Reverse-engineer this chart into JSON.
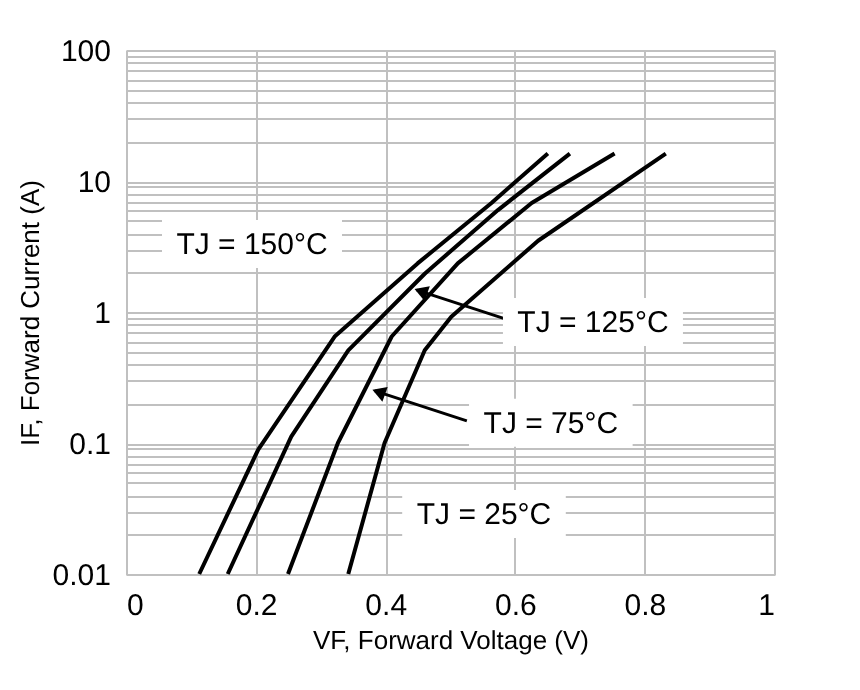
{
  "chart_data": {
    "type": "line",
    "xlabel": "VF, Forward Voltage (V)",
    "ylabel": "IF, Forward Current (A)",
    "xlim": [
      0,
      1
    ],
    "xticks": [
      0,
      0.2,
      0.4,
      0.6,
      0.8,
      1
    ],
    "ylim": [
      0.01,
      100
    ],
    "yticks": [
      0.01,
      0.1,
      1,
      10,
      100
    ],
    "log": "y",
    "grid": true,
    "line_style": "solid",
    "marker": "none",
    "series": [
      {
        "color": "#000000",
        "x": [
          0.113,
          0.204,
          0.322,
          0.45,
          0.564,
          0.651
        ],
        "values": [
          0.01,
          0.089,
          0.65,
          2.35,
          6.8,
          16.2
        ]
      },
      {
        "color": "#000000",
        "x": [
          0.157,
          0.255,
          0.343,
          0.461,
          0.574,
          0.685
        ],
        "values": [
          0.01,
          0.112,
          0.51,
          1.96,
          6.0,
          16.2
        ]
      },
      {
        "color": "#000000",
        "x": [
          0.25,
          0.327,
          0.41,
          0.512,
          0.626,
          0.754
        ],
        "values": [
          0.01,
          0.1,
          0.65,
          2.35,
          6.8,
          16.2
        ]
      },
      {
        "color": "#000000",
        "x": [
          0.343,
          0.399,
          0.461,
          0.502,
          0.636,
          0.833
        ],
        "values": [
          0.01,
          0.1,
          0.51,
          0.92,
          3.5,
          16.2
        ]
      }
    ],
    "annotations": [
      "TJ = 150°C",
      {
        "text": "TJ = 125°C",
        "x": 0.449,
        "y": 1.47
      },
      {
        "text": "TJ = 75°C",
        "x": 0.384,
        "y": 0.25
      },
      "TJ = 25°C"
    ]
  }
}
